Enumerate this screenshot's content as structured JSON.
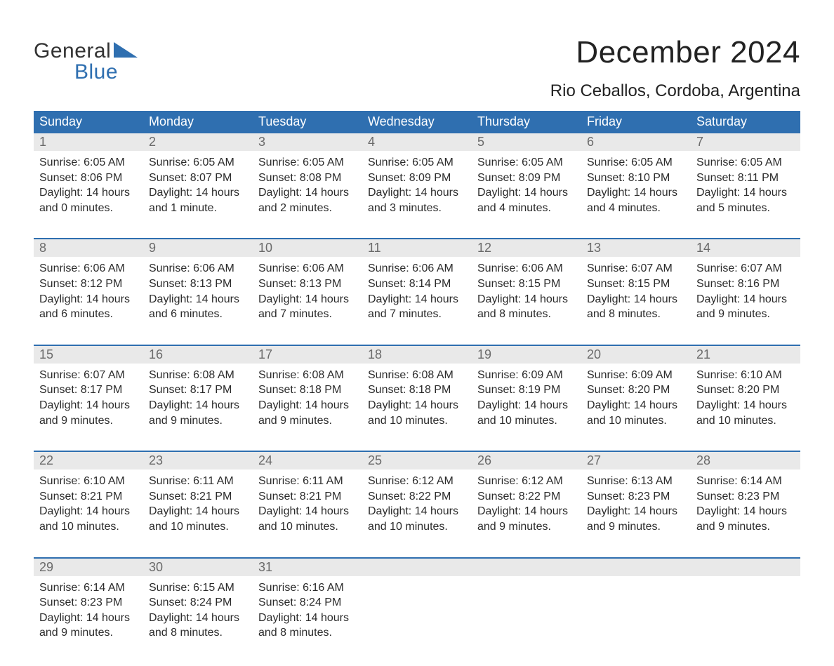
{
  "logo": {
    "text_top": "General",
    "text_bottom": "Blue",
    "top_color": "#333333",
    "bottom_color": "#2f6fb0",
    "triangle_color": "#2f6fb0"
  },
  "title": "December 2024",
  "location": "Rio Ceballos, Cordoba, Argentina",
  "colors": {
    "header_bg": "#2f6fb0",
    "header_text": "#ffffff",
    "daynum_bg": "#e9e9e9",
    "daynum_text": "#6a6a6a",
    "week_divider": "#2f6fb0",
    "body_text": "#2b2b2b",
    "page_bg": "#ffffff"
  },
  "typography": {
    "title_fontsize": 44,
    "location_fontsize": 24,
    "header_fontsize": 18,
    "daynum_fontsize": 18,
    "body_fontsize": 16,
    "font_family": "Arial"
  },
  "layout": {
    "columns": 7,
    "weeks": 5,
    "aspect": "1188x918"
  },
  "weekdays": [
    "Sunday",
    "Monday",
    "Tuesday",
    "Wednesday",
    "Thursday",
    "Friday",
    "Saturday"
  ],
  "days": [
    {
      "n": "1",
      "sunrise": "Sunrise: 6:05 AM",
      "sunset": "Sunset: 8:06 PM",
      "day1": "Daylight: 14 hours",
      "day2": "and 0 minutes."
    },
    {
      "n": "2",
      "sunrise": "Sunrise: 6:05 AM",
      "sunset": "Sunset: 8:07 PM",
      "day1": "Daylight: 14 hours",
      "day2": "and 1 minute."
    },
    {
      "n": "3",
      "sunrise": "Sunrise: 6:05 AM",
      "sunset": "Sunset: 8:08 PM",
      "day1": "Daylight: 14 hours",
      "day2": "and 2 minutes."
    },
    {
      "n": "4",
      "sunrise": "Sunrise: 6:05 AM",
      "sunset": "Sunset: 8:09 PM",
      "day1": "Daylight: 14 hours",
      "day2": "and 3 minutes."
    },
    {
      "n": "5",
      "sunrise": "Sunrise: 6:05 AM",
      "sunset": "Sunset: 8:09 PM",
      "day1": "Daylight: 14 hours",
      "day2": "and 4 minutes."
    },
    {
      "n": "6",
      "sunrise": "Sunrise: 6:05 AM",
      "sunset": "Sunset: 8:10 PM",
      "day1": "Daylight: 14 hours",
      "day2": "and 4 minutes."
    },
    {
      "n": "7",
      "sunrise": "Sunrise: 6:05 AM",
      "sunset": "Sunset: 8:11 PM",
      "day1": "Daylight: 14 hours",
      "day2": "and 5 minutes."
    },
    {
      "n": "8",
      "sunrise": "Sunrise: 6:06 AM",
      "sunset": "Sunset: 8:12 PM",
      "day1": "Daylight: 14 hours",
      "day2": "and 6 minutes."
    },
    {
      "n": "9",
      "sunrise": "Sunrise: 6:06 AM",
      "sunset": "Sunset: 8:13 PM",
      "day1": "Daylight: 14 hours",
      "day2": "and 6 minutes."
    },
    {
      "n": "10",
      "sunrise": "Sunrise: 6:06 AM",
      "sunset": "Sunset: 8:13 PM",
      "day1": "Daylight: 14 hours",
      "day2": "and 7 minutes."
    },
    {
      "n": "11",
      "sunrise": "Sunrise: 6:06 AM",
      "sunset": "Sunset: 8:14 PM",
      "day1": "Daylight: 14 hours",
      "day2": "and 7 minutes."
    },
    {
      "n": "12",
      "sunrise": "Sunrise: 6:06 AM",
      "sunset": "Sunset: 8:15 PM",
      "day1": "Daylight: 14 hours",
      "day2": "and 8 minutes."
    },
    {
      "n": "13",
      "sunrise": "Sunrise: 6:07 AM",
      "sunset": "Sunset: 8:15 PM",
      "day1": "Daylight: 14 hours",
      "day2": "and 8 minutes."
    },
    {
      "n": "14",
      "sunrise": "Sunrise: 6:07 AM",
      "sunset": "Sunset: 8:16 PM",
      "day1": "Daylight: 14 hours",
      "day2": "and 9 minutes."
    },
    {
      "n": "15",
      "sunrise": "Sunrise: 6:07 AM",
      "sunset": "Sunset: 8:17 PM",
      "day1": "Daylight: 14 hours",
      "day2": "and 9 minutes."
    },
    {
      "n": "16",
      "sunrise": "Sunrise: 6:08 AM",
      "sunset": "Sunset: 8:17 PM",
      "day1": "Daylight: 14 hours",
      "day2": "and 9 minutes."
    },
    {
      "n": "17",
      "sunrise": "Sunrise: 6:08 AM",
      "sunset": "Sunset: 8:18 PM",
      "day1": "Daylight: 14 hours",
      "day2": "and 9 minutes."
    },
    {
      "n": "18",
      "sunrise": "Sunrise: 6:08 AM",
      "sunset": "Sunset: 8:18 PM",
      "day1": "Daylight: 14 hours",
      "day2": "and 10 minutes."
    },
    {
      "n": "19",
      "sunrise": "Sunrise: 6:09 AM",
      "sunset": "Sunset: 8:19 PM",
      "day1": "Daylight: 14 hours",
      "day2": "and 10 minutes."
    },
    {
      "n": "20",
      "sunrise": "Sunrise: 6:09 AM",
      "sunset": "Sunset: 8:20 PM",
      "day1": "Daylight: 14 hours",
      "day2": "and 10 minutes."
    },
    {
      "n": "21",
      "sunrise": "Sunrise: 6:10 AM",
      "sunset": "Sunset: 8:20 PM",
      "day1": "Daylight: 14 hours",
      "day2": "and 10 minutes."
    },
    {
      "n": "22",
      "sunrise": "Sunrise: 6:10 AM",
      "sunset": "Sunset: 8:21 PM",
      "day1": "Daylight: 14 hours",
      "day2": "and 10 minutes."
    },
    {
      "n": "23",
      "sunrise": "Sunrise: 6:11 AM",
      "sunset": "Sunset: 8:21 PM",
      "day1": "Daylight: 14 hours",
      "day2": "and 10 minutes."
    },
    {
      "n": "24",
      "sunrise": "Sunrise: 6:11 AM",
      "sunset": "Sunset: 8:21 PM",
      "day1": "Daylight: 14 hours",
      "day2": "and 10 minutes."
    },
    {
      "n": "25",
      "sunrise": "Sunrise: 6:12 AM",
      "sunset": "Sunset: 8:22 PM",
      "day1": "Daylight: 14 hours",
      "day2": "and 10 minutes."
    },
    {
      "n": "26",
      "sunrise": "Sunrise: 6:12 AM",
      "sunset": "Sunset: 8:22 PM",
      "day1": "Daylight: 14 hours",
      "day2": "and 9 minutes."
    },
    {
      "n": "27",
      "sunrise": "Sunrise: 6:13 AM",
      "sunset": "Sunset: 8:23 PM",
      "day1": "Daylight: 14 hours",
      "day2": "and 9 minutes."
    },
    {
      "n": "28",
      "sunrise": "Sunrise: 6:14 AM",
      "sunset": "Sunset: 8:23 PM",
      "day1": "Daylight: 14 hours",
      "day2": "and 9 minutes."
    },
    {
      "n": "29",
      "sunrise": "Sunrise: 6:14 AM",
      "sunset": "Sunset: 8:23 PM",
      "day1": "Daylight: 14 hours",
      "day2": "and 9 minutes."
    },
    {
      "n": "30",
      "sunrise": "Sunrise: 6:15 AM",
      "sunset": "Sunset: 8:24 PM",
      "day1": "Daylight: 14 hours",
      "day2": "and 8 minutes."
    },
    {
      "n": "31",
      "sunrise": "Sunrise: 6:16 AM",
      "sunset": "Sunset: 8:24 PM",
      "day1": "Daylight: 14 hours",
      "day2": "and 8 minutes."
    }
  ]
}
